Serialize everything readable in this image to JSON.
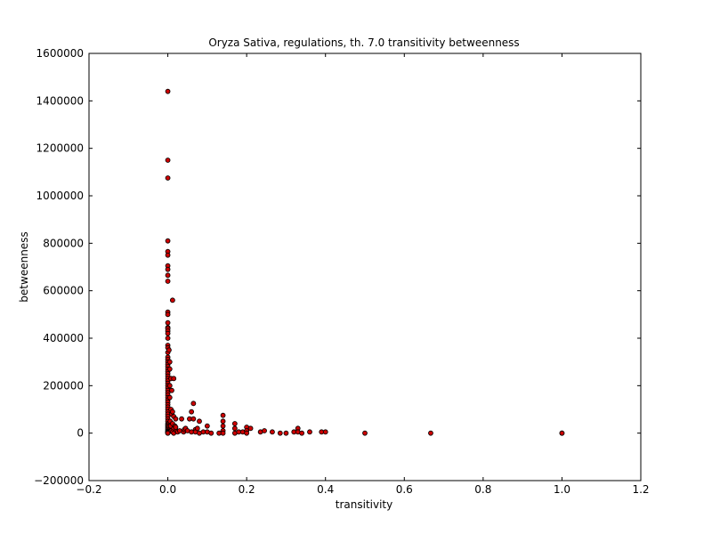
{
  "chart_data": {
    "type": "scatter",
    "title": "Oryza Sativa, regulations, th. 7.0 transitivity betweenness",
    "xlabel": "transitivity",
    "ylabel": "betweenness",
    "xlim": [
      -0.2,
      1.2
    ],
    "ylim": [
      -200000,
      1600000
    ],
    "xticks": [
      -0.2,
      0.0,
      0.2,
      0.4,
      0.6,
      0.8,
      1.0,
      1.2
    ],
    "xtick_labels": [
      "−0.2",
      "0.0",
      "0.2",
      "0.4",
      "0.6",
      "0.8",
      "1.0",
      "1.2"
    ],
    "yticks": [
      -200000,
      0,
      200000,
      400000,
      600000,
      800000,
      1000000,
      1200000,
      1400000,
      1600000
    ],
    "ytick_labels": [
      "−200000",
      "0",
      "200000",
      "400000",
      "600000",
      "800000",
      "1000000",
      "1200000",
      "1400000",
      "1600000"
    ],
    "grid": false,
    "marker_color": "#cc0000",
    "marker_edge_color": "#000000",
    "series": [
      {
        "x": [
          0,
          0,
          0,
          0,
          0,
          0,
          0,
          0,
          0,
          0,
          0,
          0,
          0,
          0,
          0,
          0,
          0,
          0,
          0,
          0,
          0,
          0,
          0,
          0,
          0,
          0,
          0,
          0,
          0,
          0,
          0,
          0,
          0,
          0,
          0,
          0,
          0,
          0,
          0,
          0,
          0,
          0,
          0,
          0,
          0,
          0,
          0,
          0,
          0,
          0,
          0,
          0,
          0,
          0,
          0,
          0,
          0,
          0,
          0,
          0,
          0,
          0,
          0,
          0.003,
          0.005,
          0.005,
          0.005,
          0.005,
          0.008,
          0.01,
          0.008,
          0.01,
          0.006,
          0.007,
          0.009,
          0.012,
          0.015,
          0.012,
          0.015,
          0.012,
          0.015,
          0.012,
          0.018,
          0.015,
          0.02,
          0.022,
          0.025,
          0.02,
          0.03,
          0.035,
          0.04,
          0.042,
          0.045,
          0.05,
          0.055,
          0.06,
          0.06,
          0.065,
          0.065,
          0.07,
          0.07,
          0.075,
          0.08,
          0.08,
          0.09,
          0.1,
          0.1,
          0.11,
          0.13,
          0.14,
          0.14,
          0.14,
          0.14,
          0.14,
          0.17,
          0.17,
          0.17,
          0.18,
          0.19,
          0.2,
          0.2,
          0.2,
          0.21,
          0.235,
          0.245,
          0.265,
          0.285,
          0.3,
          0.32,
          0.33,
          0.33,
          0.34,
          0.36,
          0.39,
          0.4,
          0.5,
          0.667,
          1.0,
          1.0
        ],
        "y": [
          1440000,
          1150000,
          1075000,
          810000,
          765000,
          750000,
          705000,
          690000,
          665000,
          640000,
          510000,
          500000,
          465000,
          445000,
          440000,
          430000,
          420000,
          400000,
          370000,
          360000,
          340000,
          320000,
          310000,
          300000,
          290000,
          280000,
          270000,
          260000,
          250000,
          240000,
          230000,
          220000,
          210000,
          200000,
          190000,
          180000,
          170000,
          160000,
          150000,
          140000,
          130000,
          120000,
          110000,
          100000,
          90000,
          80000,
          70000,
          60000,
          50000,
          40000,
          35000,
          30000,
          25000,
          20000,
          15000,
          10000,
          8000,
          5000,
          3000,
          2000,
          1000,
          500,
          0,
          350000,
          300000,
          270000,
          200000,
          150000,
          230000,
          180000,
          100000,
          80000,
          50000,
          30000,
          10000,
          560000,
          230000,
          90000,
          70000,
          40000,
          20000,
          5000,
          30000,
          0,
          60000,
          10000,
          5000,
          25000,
          10000,
          60000,
          5000,
          15000,
          20000,
          10000,
          60000,
          90000,
          5000,
          125000,
          60000,
          15000,
          5000,
          20000,
          50000,
          0,
          5000,
          5000,
          30000,
          0,
          0,
          75000,
          50000,
          30000,
          10000,
          0,
          40000,
          20000,
          0,
          5000,
          5000,
          25000,
          10000,
          0,
          20000,
          5000,
          10000,
          5000,
          0,
          0,
          5000,
          20000,
          5000,
          0,
          5000,
          5000,
          5000,
          0,
          0,
          0,
          0
        ]
      }
    ]
  }
}
